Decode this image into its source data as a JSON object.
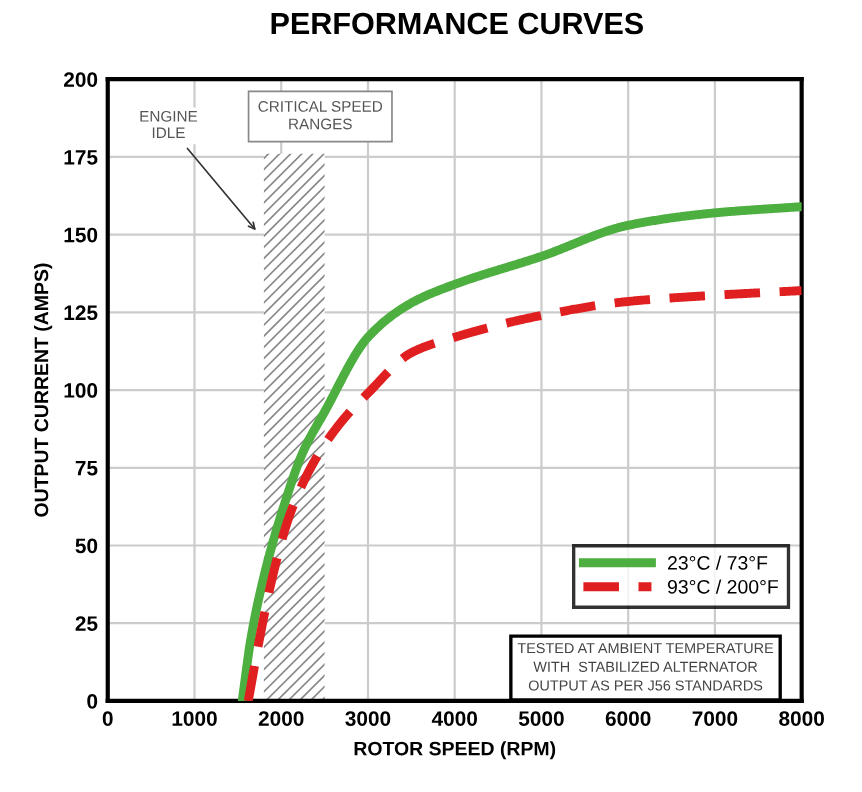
{
  "chart_data": {
    "type": "line",
    "title": "PERFORMANCE CURVES",
    "xlabel": "ROTOR SPEED (RPM)",
    "ylabel": "OUTPUT CURRENT (AMPS)",
    "xlim": [
      0,
      8000
    ],
    "xticks": [
      0,
      1000,
      2000,
      3000,
      4000,
      5000,
      6000,
      7000,
      8000
    ],
    "ylim": [
      0,
      200
    ],
    "yticks": [
      0,
      25,
      50,
      75,
      100,
      125,
      150,
      175,
      200
    ],
    "grid": true,
    "legend": "bottom right",
    "series": [
      {
        "name": "23°C / 73°F",
        "color": "#4caf3f",
        "line_style": "solid",
        "x": [
          1550,
          1650,
          1800,
          2000,
          2250,
          2500,
          3000,
          3500,
          4000,
          5000,
          6000,
          7000,
          8000
        ],
        "values": [
          0,
          20,
          40,
          60,
          80,
          93,
          117,
          128,
          134,
          143,
          153,
          157,
          159
        ]
      },
      {
        "name": "93°C / 200°F",
        "color": "#e02020",
        "line_style": "dashed",
        "x": [
          1620,
          1750,
          1900,
          2100,
          2400,
          2700,
          3000,
          3500,
          4000,
          5000,
          6000,
          7000,
          8000
        ],
        "values": [
          0,
          20,
          40,
          60,
          78,
          90,
          99,
          112,
          117,
          124,
          128.5,
          130.5,
          132
        ]
      }
    ],
    "bands": [
      {
        "axis": "x",
        "from": 1800,
        "to": 2500,
        "label": "CRITICAL SPEED\nRANGES",
        "color": "#888888"
      }
    ],
    "annotations": [
      {
        "text": "ENGINE\nIDLE",
        "x": 1750,
        "y": 150
      },
      "TESTED AT AMBIENT TEMPERATURE\nWITH  STABILIZED ALTERNATOR\nOUTPUT AS PER J56 STANDARDS"
    ]
  }
}
